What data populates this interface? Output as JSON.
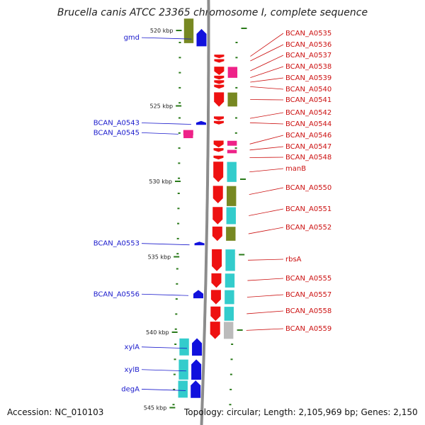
{
  "title": "Brucella canis ATCC 23365 chromosome I, complete sequence",
  "accession_label": "Accession: NC_010103",
  "topology_label": "Topology: circular; Length: 2,105,969 bp; Genes: 2,150",
  "colors": {
    "backbone": "#8c8c8c",
    "tick": "#2a7a1a",
    "left_label": "#1a1acc",
    "right_label": "#cc1111",
    "gene_blue": "#1111dd",
    "gene_red": "#ee1111",
    "gene_pink": "#ee2288",
    "gene_cyan": "#33cccc",
    "gene_olive": "#778822",
    "gene_gray": "#bbbbbb"
  },
  "scale": {
    "ticks": [
      {
        "label": "520 kbp",
        "kbp": 520
      },
      {
        "label": "525 kbp",
        "kbp": 525
      },
      {
        "label": "530 kbp",
        "kbp": 530
      },
      {
        "label": "535 kbp",
        "kbp": 535
      },
      {
        "label": "540 kbp",
        "kbp": 540
      },
      {
        "label": "545 kbp",
        "kbp": 545
      }
    ]
  },
  "left_genes": [
    {
      "label": "gmd",
      "kbp": 519.9,
      "len": 1.2,
      "strand": "+",
      "track": "blue",
      "color": "gene_blue"
    },
    {
      "label": "BCAN_A0543",
      "kbp": 526.0,
      "len": 0.3,
      "strand": "+",
      "track": "blue",
      "color": "gene_blue"
    },
    {
      "label": "BCAN_A0545",
      "kbp": 526.6,
      "len": 0.4,
      "strand": "+",
      "track": "pink",
      "color": "gene_pink"
    },
    {
      "label": "BCAN_A0553",
      "kbp": 534.0,
      "len": 0.2,
      "strand": "+",
      "track": "blue",
      "color": "gene_blue"
    },
    {
      "label": "BCAN_A0556",
      "kbp": 537.2,
      "len": 0.6,
      "strand": "+",
      "track": "blue",
      "color": "gene_blue"
    },
    {
      "label": "xylA",
      "kbp": 540.4,
      "len": 1.2,
      "strand": "+",
      "track": "blue",
      "color": "gene_blue"
    },
    {
      "label": "xylB",
      "kbp": 541.8,
      "len": 1.4,
      "strand": "+",
      "track": "blue",
      "color": "gene_blue"
    },
    {
      "label": "degA",
      "kbp": 543.2,
      "len": 1.2,
      "strand": "+",
      "track": "blue",
      "color": "gene_blue"
    }
  ],
  "right_genes": [
    {
      "label": "BCAN_A0535",
      "kbp": 521.6,
      "len": 0.25,
      "strand": "-",
      "color": "gene_red"
    },
    {
      "label": "BCAN_A0536",
      "kbp": 521.9,
      "len": 0.25,
      "strand": "-",
      "color": "gene_red"
    },
    {
      "label": "BCAN_A0537",
      "kbp": 522.4,
      "len": 0.6,
      "strand": "-",
      "color": "gene_red"
    },
    {
      "label": "BCAN_A0538",
      "kbp": 523.0,
      "len": 0.3,
      "strand": "-",
      "color": "gene_red"
    },
    {
      "label": "BCAN_A0539",
      "kbp": 523.3,
      "len": 0.3,
      "strand": "-",
      "color": "gene_red"
    },
    {
      "label": "BCAN_A0540",
      "kbp": 523.6,
      "len": 0.3,
      "strand": "-",
      "color": "gene_red"
    },
    {
      "label": "BCAN_A0541",
      "kbp": 524.1,
      "len": 1.0,
      "strand": "-",
      "color": "gene_red"
    },
    {
      "label": "BCAN_A0542",
      "kbp": 525.7,
      "len": 0.3,
      "strand": "-",
      "color": "gene_red"
    },
    {
      "label": "BCAN_A0544",
      "kbp": 526.0,
      "len": 0.2,
      "strand": "-",
      "color": "gene_red"
    },
    {
      "label": "BCAN_A0546",
      "kbp": 527.3,
      "len": 0.5,
      "strand": "-",
      "color": "gene_red"
    },
    {
      "label": "BCAN_A0547",
      "kbp": 527.8,
      "len": 0.3,
      "strand": "-",
      "color": "gene_red"
    },
    {
      "label": "BCAN_A0548",
      "kbp": 528.3,
      "len": 0.3,
      "strand": "-",
      "color": "gene_red"
    },
    {
      "label": "manB",
      "kbp": 528.7,
      "len": 1.4,
      "strand": "-",
      "color": "gene_red"
    },
    {
      "label": "BCAN_A0550",
      "kbp": 530.3,
      "len": 1.2,
      "strand": "-",
      "color": "gene_red"
    },
    {
      "label": "BCAN_A0551",
      "kbp": 531.7,
      "len": 1.2,
      "strand": "-",
      "color": "gene_red"
    },
    {
      "label": "BCAN_A0552",
      "kbp": 533.0,
      "len": 1.0,
      "strand": "-",
      "color": "gene_red"
    },
    {
      "label": "rbsA",
      "kbp": 534.5,
      "len": 1.5,
      "strand": "-",
      "color": "gene_red"
    },
    {
      "label": "BCAN_A0555",
      "kbp": 536.1,
      "len": 1.0,
      "strand": "-",
      "color": "gene_red"
    },
    {
      "label": "BCAN_A0557",
      "kbp": 537.2,
      "len": 1.0,
      "strand": "-",
      "color": "gene_red"
    },
    {
      "label": "BCAN_A0558",
      "kbp": 538.3,
      "len": 1.0,
      "strand": "-",
      "color": "gene_red"
    },
    {
      "label": "BCAN_A0559",
      "kbp": 539.3,
      "len": 1.2,
      "strand": "-",
      "color": "gene_red"
    }
  ],
  "feature_blocks": [
    {
      "track": "L2",
      "kbp": 519.2,
      "len": 1.7,
      "color": "gene_olive"
    },
    {
      "track": "R2",
      "kbp": 522.4,
      "len": 0.8,
      "color": "gene_pink"
    },
    {
      "track": "R2",
      "kbp": 524.1,
      "len": 1.0,
      "color": "gene_olive"
    },
    {
      "track": "L2",
      "kbp": 526.6,
      "len": 0.6,
      "color": "gene_pink"
    },
    {
      "track": "R2",
      "kbp": 527.3,
      "len": 0.4,
      "color": "gene_pink"
    },
    {
      "track": "R2",
      "kbp": 527.9,
      "len": 0.3,
      "color": "gene_pink"
    },
    {
      "track": "R2",
      "kbp": 528.7,
      "len": 1.4,
      "color": "gene_cyan"
    },
    {
      "track": "R2",
      "kbp": 530.3,
      "len": 1.4,
      "color": "gene_olive"
    },
    {
      "track": "R2",
      "kbp": 531.7,
      "len": 1.2,
      "color": "gene_cyan"
    },
    {
      "track": "R2",
      "kbp": 533.0,
      "len": 1.0,
      "color": "gene_olive"
    },
    {
      "track": "R2",
      "kbp": 534.5,
      "len": 1.5,
      "color": "gene_cyan"
    },
    {
      "track": "R2",
      "kbp": 536.1,
      "len": 1.0,
      "color": "gene_cyan"
    },
    {
      "track": "R2",
      "kbp": 537.2,
      "len": 1.0,
      "color": "gene_cyan"
    },
    {
      "track": "R2",
      "kbp": 538.3,
      "len": 1.0,
      "color": "gene_cyan"
    },
    {
      "track": "R2",
      "kbp": 539.3,
      "len": 1.2,
      "color": "gene_gray"
    },
    {
      "track": "L2",
      "kbp": 540.4,
      "len": 1.2,
      "color": "gene_cyan"
    },
    {
      "track": "L2",
      "kbp": 541.8,
      "len": 1.4,
      "color": "gene_cyan"
    },
    {
      "track": "L2",
      "kbp": 543.2,
      "len": 1.2,
      "color": "gene_cyan"
    }
  ]
}
